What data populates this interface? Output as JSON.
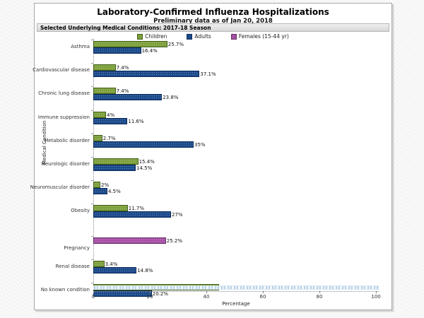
{
  "page": {
    "title": "Laboratory-Confirmed Influenza Hospitalizations",
    "subtitle": "Preliminary data as of Jan 20, 2018",
    "panel_header": "Selected Underlying Medical Conditions: 2017-18 Season"
  },
  "legend": {
    "position": "top",
    "items": [
      {
        "label": "Children",
        "color": "#7ea03c",
        "border": "#41611a"
      },
      {
        "label": "Adults",
        "color": "#1b4a8b",
        "border": "#0d2c5a"
      },
      {
        "label": "Females (15-44 yr)",
        "color": "#a750a7",
        "border": "#632f63"
      }
    ]
  },
  "chart_data": {
    "type": "bar",
    "orientation": "horizontal",
    "title": "Laboratory-Confirmed Influenza Hospitalizations",
    "subtitle": "Preliminary data as of Jan 20, 2018",
    "xlabel": "Percentage",
    "ylabel": "Medical Condition",
    "xlim": [
      0,
      100
    ],
    "xticks": [
      0,
      20,
      40,
      60,
      80,
      100
    ],
    "grid": false,
    "legend_position": "top-center",
    "categories": [
      "Asthma",
      "Cardiovascular disease",
      "Chronic lung disease",
      "Immune suppression",
      "Metabolic disorder",
      "Neurologic disorder",
      "Neuromuscular disorder",
      "Obesity",
      "Pregnancy",
      "Renal disease",
      "No known condition"
    ],
    "series": [
      {
        "name": "Children",
        "color": "#7ea03c",
        "border": "#41611a",
        "values": [
          25.7,
          7.4,
          7.4,
          4,
          2.7,
          15.4,
          2,
          11.7,
          null,
          3.4,
          43.9
        ],
        "labels": [
          "25.7%",
          "7.4%",
          "7.4%",
          "4%",
          "2.7%",
          "15.4%",
          "2%",
          "11.7%",
          null,
          "3.4%",
          "43.9%"
        ]
      },
      {
        "name": "Adults",
        "color": "#1b4a8b",
        "border": "#0d2c5a",
        "values": [
          16.4,
          37.1,
          23.8,
          11.6,
          35,
          14.5,
          4.5,
          27,
          null,
          14.8,
          20.2
        ],
        "labels": [
          "16.4%",
          "37.1%",
          "23.8%",
          "11.6%",
          "35%",
          "14.5%",
          "4.5%",
          "27%",
          null,
          "14.8%",
          "20.2%"
        ]
      },
      {
        "name": "Females (15-44 yr)",
        "color": "#a750a7",
        "border": "#632f63",
        "values": [
          null,
          null,
          null,
          null,
          null,
          null,
          null,
          null,
          25.2,
          null,
          null
        ],
        "labels": [
          null,
          null,
          null,
          null,
          null,
          null,
          null,
          null,
          "25.2%",
          null,
          null
        ]
      }
    ]
  }
}
